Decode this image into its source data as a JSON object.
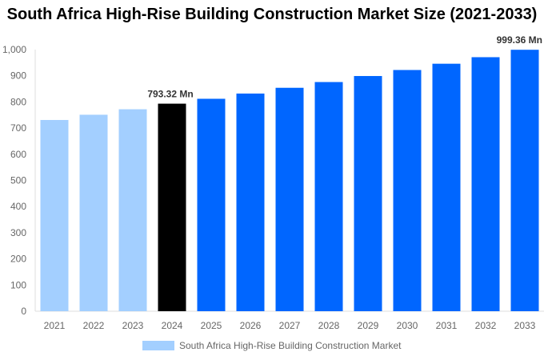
{
  "chart_data": {
    "type": "bar",
    "title": "South Africa High-Rise Building Construction Market Size (2021-2033)",
    "categories": [
      "2021",
      "2022",
      "2023",
      "2024",
      "2025",
      "2026",
      "2027",
      "2028",
      "2029",
      "2030",
      "2031",
      "2032",
      "2033"
    ],
    "values": [
      731,
      751,
      772,
      793.32,
      812,
      832,
      854,
      876,
      899,
      922,
      946,
      971,
      999.36
    ],
    "data_labels": {
      "3": "793.32 Mn",
      "12": "999.36 Mn"
    },
    "ylim": [
      0,
      1000
    ],
    "yticks": [
      "0",
      "100",
      "200",
      "300",
      "400",
      "500",
      "600",
      "700",
      "800",
      "900",
      "1,000"
    ],
    "colors": {
      "historical": "#a3cfff",
      "current": "#000000",
      "forecast": "#0066ff"
    },
    "legend": {
      "label": "South Africa High-Rise Building Construction Market",
      "placement": "bottom"
    },
    "grid": false
  }
}
